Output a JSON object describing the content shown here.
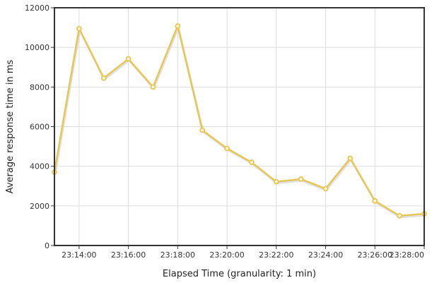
{
  "chart_data": {
    "type": "line",
    "title": "",
    "xlabel": "Elapsed Time (granularity: 1 min)",
    "ylabel": "Average response time in ms",
    "xticks": [
      "23:14:00",
      "23:16:00",
      "23:18:00",
      "23:20:00",
      "23:22:00",
      "23:24:00",
      "23:26:00",
      "23:28:00"
    ],
    "yticks": [
      0,
      2000,
      4000,
      6000,
      8000,
      10000,
      12000
    ],
    "xlim": [
      "23:13:00",
      "23:28:00"
    ],
    "ylim": [
      0,
      12000
    ],
    "grid": true,
    "legend": "none",
    "series": [
      {
        "color": "#e8c655",
        "x": [
          "23:13:00",
          "23:14:00",
          "23:15:00",
          "23:16:00",
          "23:17:00",
          "23:18:00",
          "23:19:00",
          "23:20:00",
          "23:21:00",
          "23:22:00",
          "23:23:00",
          "23:24:00",
          "23:25:00",
          "23:26:00",
          "23:27:00",
          "23:28:00"
        ],
        "values": [
          3700,
          10950,
          8450,
          9420,
          8000,
          11080,
          5820,
          4900,
          4200,
          3220,
          3350,
          2870,
          4400,
          2250,
          1500,
          1600
        ]
      }
    ]
  }
}
